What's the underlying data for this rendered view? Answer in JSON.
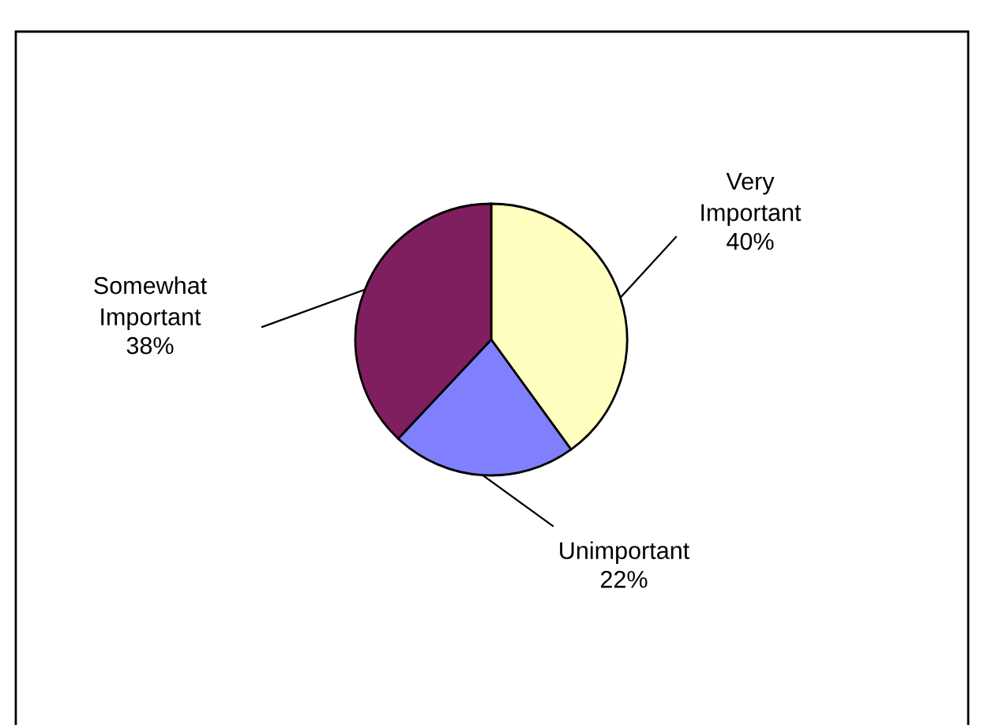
{
  "chart_data": {
    "type": "pie",
    "categories": [
      "Very\nImportant",
      "Unimportant",
      "Somewhat\nImportant"
    ],
    "values": [
      40,
      22,
      38
    ],
    "value_labels": [
      "40%",
      "22%",
      "38%"
    ],
    "colors": [
      "#ffffc0",
      "#8080ff",
      "#801f5f"
    ]
  }
}
